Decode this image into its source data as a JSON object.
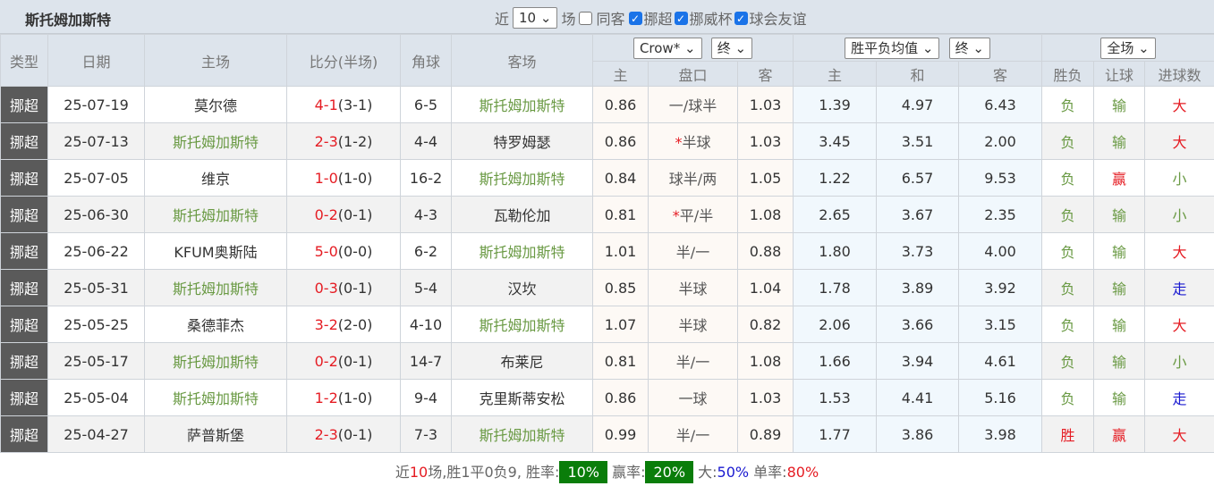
{
  "title": "斯托姆加斯特",
  "filters": {
    "recent_label": "近",
    "recent_value": "10",
    "games_label": "场",
    "same_away": "同客",
    "same_away_checked": false,
    "leagues": [
      {
        "label": "挪超",
        "checked": true
      },
      {
        "label": "挪威杯",
        "checked": true
      },
      {
        "label": "球会友谊",
        "checked": true
      }
    ]
  },
  "header": {
    "type": "类型",
    "date": "日期",
    "home": "主场",
    "score": "比分(半场)",
    "corner": "角球",
    "away": "客场",
    "company_select": "Crow*",
    "handicap_time_select": "终",
    "odds_select": "胜平负均值",
    "odds_time_select": "终",
    "period_select": "全场",
    "sub": [
      "主",
      "盘口",
      "客",
      "主",
      "和",
      "客",
      "胜负",
      "让球",
      "进球数"
    ]
  },
  "rows": [
    {
      "type": "挪超",
      "date": "25-07-19",
      "home": "莫尔德",
      "home_is_team": false,
      "ft": "4-1",
      "ht": "(3-1)",
      "corner": "6-5",
      "away": "斯托姆加斯特",
      "away_is_team": true,
      "h1": "0.86",
      "star": "",
      "line": "一/球半",
      "h2": "1.03",
      "o1": "1.39",
      "o2": "4.97",
      "o3": "6.43",
      "wl": "负",
      "ah": "输",
      "ou": "大"
    },
    {
      "type": "挪超",
      "date": "25-07-13",
      "home": "斯托姆加斯特",
      "home_is_team": true,
      "ft": "2-3",
      "ht": "(1-2)",
      "corner": "4-4",
      "away": "特罗姆瑟",
      "away_is_team": false,
      "h1": "0.86",
      "star": "*",
      "line": "半球",
      "h2": "1.03",
      "o1": "3.45",
      "o2": "3.51",
      "o3": "2.00",
      "wl": "负",
      "ah": "输",
      "ou": "大"
    },
    {
      "type": "挪超",
      "date": "25-07-05",
      "home": "维京",
      "home_is_team": false,
      "ft": "1-0",
      "ht": "(1-0)",
      "corner": "16-2",
      "away": "斯托姆加斯特",
      "away_is_team": true,
      "h1": "0.84",
      "star": "",
      "line": "球半/两",
      "h2": "1.05",
      "o1": "1.22",
      "o2": "6.57",
      "o3": "9.53",
      "wl": "负",
      "ah": "赢",
      "ou": "小"
    },
    {
      "type": "挪超",
      "date": "25-06-30",
      "home": "斯托姆加斯特",
      "home_is_team": true,
      "ft": "0-2",
      "ht": "(0-1)",
      "corner": "4-3",
      "away": "瓦勒伦加",
      "away_is_team": false,
      "h1": "0.81",
      "star": "*",
      "line": "平/半",
      "h2": "1.08",
      "o1": "2.65",
      "o2": "3.67",
      "o3": "2.35",
      "wl": "负",
      "ah": "输",
      "ou": "小"
    },
    {
      "type": "挪超",
      "date": "25-06-22",
      "home": "KFUM奥斯陆",
      "home_is_team": false,
      "ft": "5-0",
      "ht": "(0-0)",
      "corner": "6-2",
      "away": "斯托姆加斯特",
      "away_is_team": true,
      "h1": "1.01",
      "star": "",
      "line": "半/一",
      "h2": "0.88",
      "o1": "1.80",
      "o2": "3.73",
      "o3": "4.00",
      "wl": "负",
      "ah": "输",
      "ou": "大"
    },
    {
      "type": "挪超",
      "date": "25-05-31",
      "home": "斯托姆加斯特",
      "home_is_team": true,
      "ft": "0-3",
      "ht": "(0-1)",
      "corner": "5-4",
      "away": "汉坎",
      "away_is_team": false,
      "h1": "0.85",
      "star": "",
      "line": "半球",
      "h2": "1.04",
      "o1": "1.78",
      "o2": "3.89",
      "o3": "3.92",
      "wl": "负",
      "ah": "输",
      "ou": "走"
    },
    {
      "type": "挪超",
      "date": "25-05-25",
      "home": "桑德菲杰",
      "home_is_team": false,
      "ft": "3-2",
      "ht": "(2-0)",
      "corner": "4-10",
      "away": "斯托姆加斯特",
      "away_is_team": true,
      "h1": "1.07",
      "star": "",
      "line": "半球",
      "h2": "0.82",
      "o1": "2.06",
      "o2": "3.66",
      "o3": "3.15",
      "wl": "负",
      "ah": "输",
      "ou": "大"
    },
    {
      "type": "挪超",
      "date": "25-05-17",
      "home": "斯托姆加斯特",
      "home_is_team": true,
      "ft": "0-2",
      "ht": "(0-1)",
      "corner": "14-7",
      "away": "布莱尼",
      "away_is_team": false,
      "h1": "0.81",
      "star": "",
      "line": "半/一",
      "h2": "1.08",
      "o1": "1.66",
      "o2": "3.94",
      "o3": "4.61",
      "wl": "负",
      "ah": "输",
      "ou": "小"
    },
    {
      "type": "挪超",
      "date": "25-05-04",
      "home": "斯托姆加斯特",
      "home_is_team": true,
      "ft": "1-2",
      "ht": "(1-0)",
      "corner": "9-4",
      "away": "克里斯蒂安松",
      "away_is_team": false,
      "h1": "0.86",
      "star": "",
      "line": "一球",
      "h2": "1.03",
      "o1": "1.53",
      "o2": "4.41",
      "o3": "5.16",
      "wl": "负",
      "ah": "输",
      "ou": "走"
    },
    {
      "type": "挪超",
      "date": "25-04-27",
      "home": "萨普斯堡",
      "home_is_team": false,
      "ft": "2-3",
      "ht": "(0-1)",
      "corner": "7-3",
      "away": "斯托姆加斯特",
      "away_is_team": true,
      "h1": "0.99",
      "star": "",
      "line": "半/一",
      "h2": "0.89",
      "o1": "1.77",
      "o2": "3.86",
      "o3": "3.98",
      "wl": "胜",
      "ah": "赢",
      "ou": "大"
    }
  ],
  "footer": {
    "p1": "近",
    "n": "10",
    "p2": "场,胜1平0负9, 胜率:",
    "win_rate": "10%",
    "p3": " 赢率:",
    "cover_rate": "20%",
    "p4": " 大:",
    "over_rate": "50%",
    "p5": " 单率:",
    "odd_rate": "80%"
  },
  "colors": {
    "team": "#6a9a44",
    "red": "#e51c23",
    "blue": "#1a1ad0",
    "badge": "#0a7d0a"
  }
}
